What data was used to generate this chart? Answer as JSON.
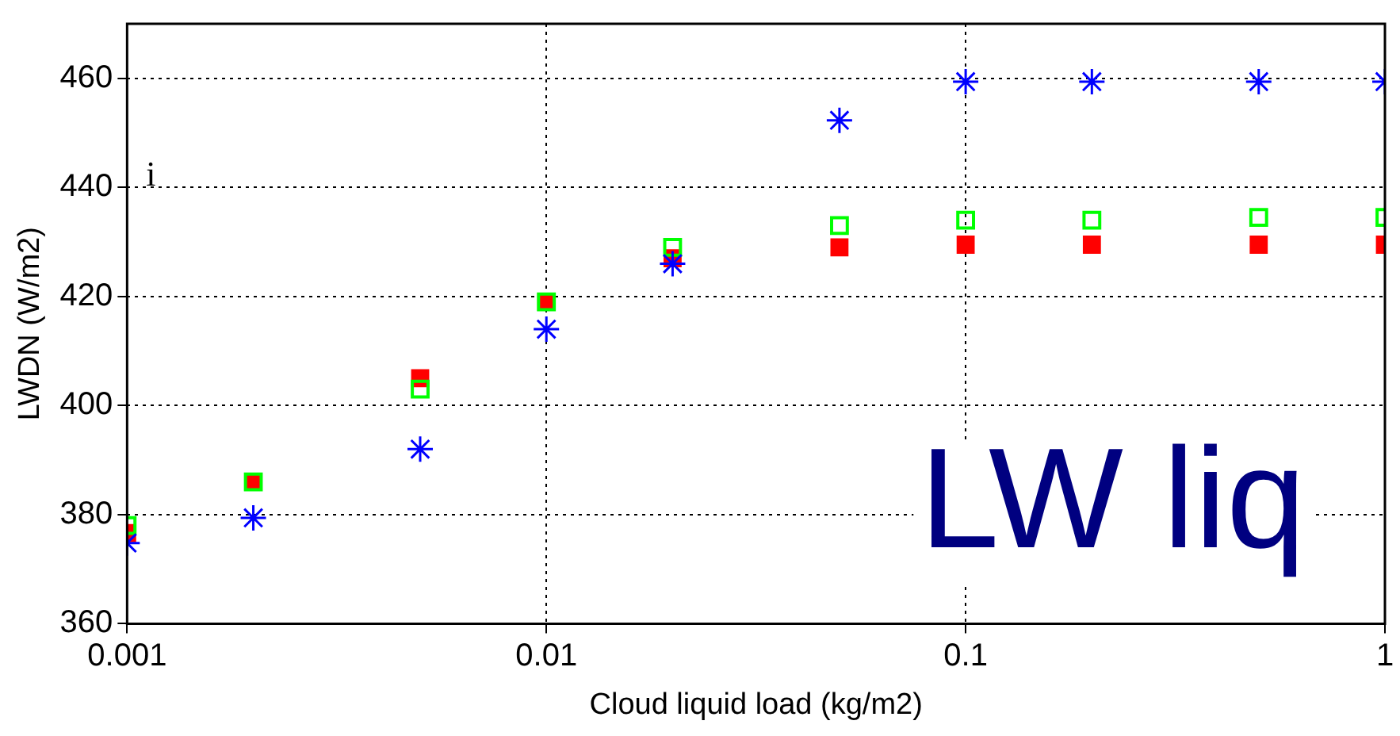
{
  "chart_data": {
    "type": "scatter",
    "xlabel": "Cloud liquid load (kg/m2)",
    "ylabel": "LWDN (W/m2)",
    "x": [
      0.001,
      0.002,
      0.005,
      0.01,
      0.02,
      0.05,
      0.1,
      0.2,
      0.5,
      1
    ],
    "series": [
      {
        "color": "#ff0000",
        "marker": "square",
        "values": [
          376.6,
          386,
          405,
          419,
          427,
          429,
          429.5,
          429.5,
          429.5,
          429.5
        ]
      },
      {
        "color": "#00ff00",
        "marker": "square",
        "values": [
          378,
          386,
          403,
          419,
          429,
          433,
          434,
          434,
          434.5,
          434.5
        ]
      },
      {
        "color": "#0000ff",
        "marker": "cross",
        "values": [
          374.8,
          379.4,
          392,
          414,
          426,
          452.3,
          459.4,
          459.4,
          459.4,
          459.4
        ]
      }
    ],
    "log": "x",
    "xlim": [
      0.001,
      1
    ],
    "xticks": [
      0.001,
      0.01,
      0.1,
      1
    ],
    "ylim": [
      360,
      470
    ],
    "yticks": [
      360,
      380,
      400,
      420,
      440,
      460
    ],
    "grid": true,
    "legend": false,
    "annotations": [
      "i",
      "LW liq"
    ]
  }
}
